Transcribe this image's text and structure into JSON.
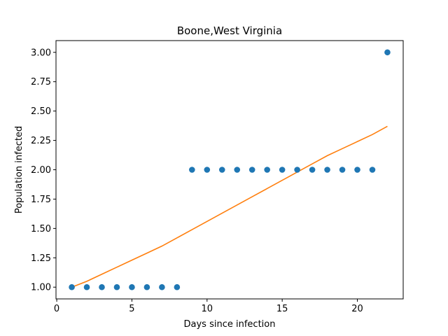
{
  "chart_data": {
    "type": "scatter",
    "title": "Boone,West Virginia",
    "xlabel": "Days since infection",
    "ylabel": "Population infected",
    "xlim": [
      -0.05,
      23.05
    ],
    "ylim": [
      0.9,
      3.1
    ],
    "grid": false,
    "x_ticks": [
      0,
      5,
      10,
      15,
      20
    ],
    "y_ticks": [
      1.0,
      1.25,
      1.5,
      1.75,
      2.0,
      2.25,
      2.5,
      2.75,
      3.0
    ],
    "y_tick_labels": [
      "1.00",
      "1.25",
      "1.50",
      "1.75",
      "2.00",
      "2.25",
      "2.50",
      "2.75",
      "3.00"
    ],
    "series": [
      {
        "kind": "scatter",
        "color": "#1f77b4",
        "x": [
          1,
          2,
          3,
          4,
          5,
          6,
          7,
          8,
          9,
          10,
          11,
          12,
          13,
          14,
          15,
          16,
          17,
          18,
          19,
          20,
          21,
          22
        ],
        "y": [
          1,
          1,
          1,
          1,
          1,
          1,
          1,
          1,
          2,
          2,
          2,
          2,
          2,
          2,
          2,
          2,
          2,
          2,
          2,
          2,
          2,
          3
        ]
      },
      {
        "kind": "line",
        "color": "#ff7f0e",
        "x": [
          1,
          2,
          3,
          4,
          5,
          6,
          7,
          8,
          9,
          10,
          11,
          12,
          13,
          14,
          15,
          16,
          17,
          18,
          19,
          20,
          21,
          22
        ],
        "y": [
          1.0,
          1.05,
          1.11,
          1.17,
          1.23,
          1.29,
          1.35,
          1.42,
          1.49,
          1.56,
          1.63,
          1.7,
          1.77,
          1.84,
          1.91,
          1.98,
          2.05,
          2.12,
          2.18,
          2.24,
          2.3,
          2.37
        ]
      }
    ]
  }
}
